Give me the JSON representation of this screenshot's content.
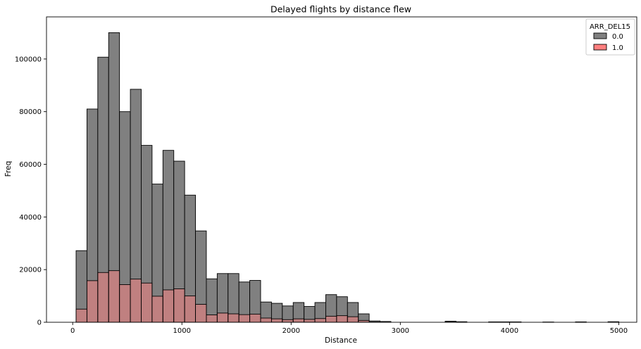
{
  "chart_data": {
    "type": "bar",
    "title": "Delayed flights by distance flew",
    "xlabel": "Distance",
    "ylabel": "Freq",
    "xlim": [
      -240,
      5165
    ],
    "ylim": [
      0,
      116000
    ],
    "xticks": [
      0,
      1000,
      2000,
      3000,
      4000,
      5000
    ],
    "yticks": [
      0,
      20000,
      40000,
      60000,
      80000,
      100000
    ],
    "grid": false,
    "legend": {
      "title": "ARR_DEL15",
      "placement": "top-right"
    },
    "bin_start": 31,
    "bin_width": 99.4,
    "series": [
      {
        "name": "0.0",
        "color": "#808080",
        "values": [
          27200,
          81000,
          100700,
          110000,
          80000,
          88500,
          67200,
          52500,
          65300,
          61200,
          48300,
          34700,
          16500,
          18500,
          18500,
          15300,
          15900,
          7700,
          7200,
          6200,
          7500,
          6000,
          7500,
          10500,
          9700,
          7500,
          3200,
          500,
          300,
          0,
          0,
          0,
          0,
          0,
          400,
          200,
          0,
          0,
          150,
          150,
          150,
          0,
          0,
          100,
          0,
          0,
          150,
          0,
          0,
          200,
          0
        ]
      },
      {
        "name": "1.0",
        "color": "#ff7f7f",
        "values": [
          5000,
          15800,
          18900,
          19600,
          14300,
          16400,
          14900,
          9900,
          12300,
          12700,
          10000,
          6800,
          2800,
          3500,
          3200,
          2900,
          3100,
          1600,
          1300,
          1000,
          1300,
          1100,
          1400,
          2300,
          2500,
          2100,
          700,
          100,
          50,
          0,
          0,
          0,
          0,
          0,
          100,
          50,
          0,
          0,
          30,
          30,
          30,
          0,
          0,
          20,
          0,
          0,
          30,
          0,
          0,
          40,
          0
        ]
      }
    ]
  }
}
